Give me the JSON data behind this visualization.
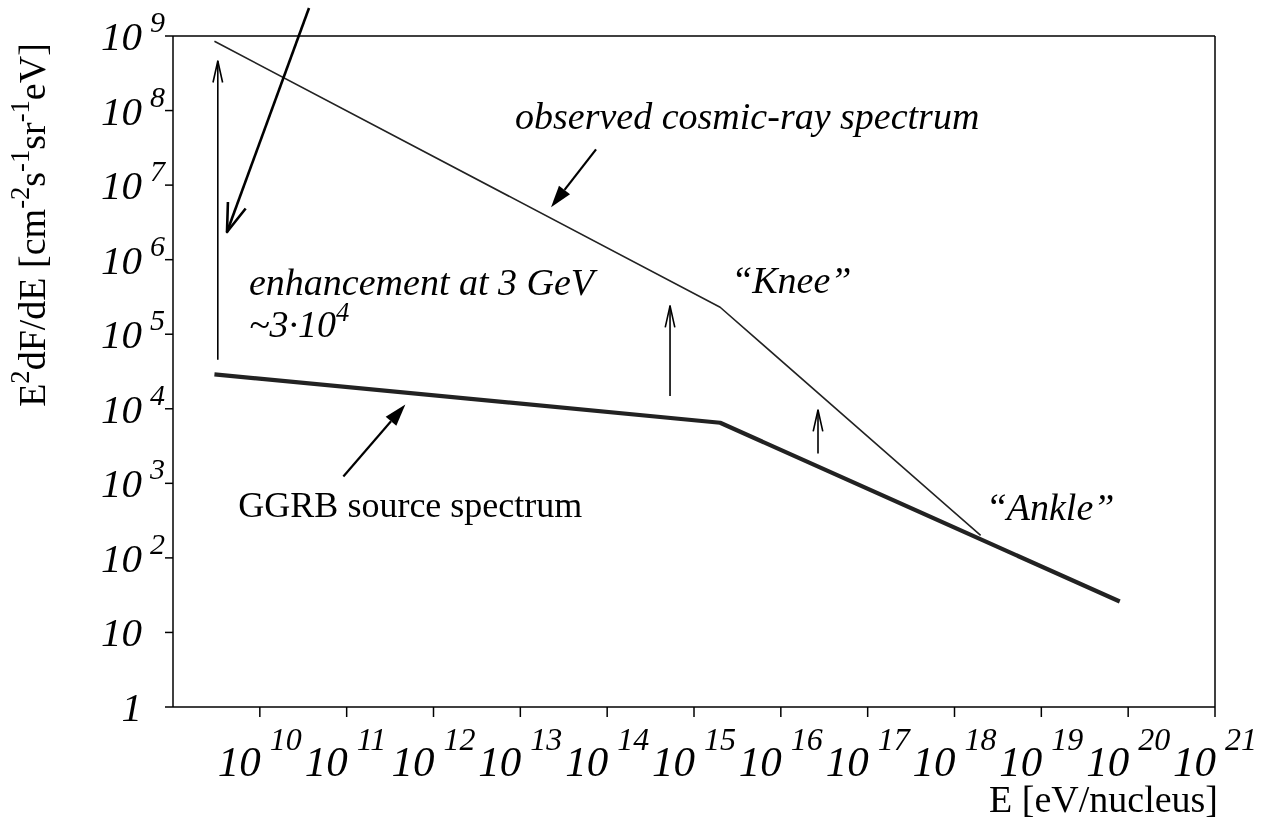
{
  "chart_data": {
    "type": "line",
    "xlabel": "E [eV/nucleus]",
    "ylabel": "E$^{2}$dF/dE [cm$^{-2}$s$^{-1}$sr$^{-1}$eV]",
    "annotations": [
      "enhancement at 3 GeV",
      "~3·10$^{4}$",
      {
        "text": "“Knee”",
        "x": 2000000000000000.0,
        "y": 230000.0
      },
      {
        "text": "“Ankle”",
        "x": 2e+18,
        "y": 200
      }
    ],
    "series": [
      {
        "name": "observed cosmic-ray spectrum",
        "color": "#222222",
        "x": [
          3000000000.0,
          2000000000000000.0,
          2e+18
        ],
        "values": [
          850000000.0,
          230000.0,
          200
        ]
      },
      {
        "name": "GGRB source spectrum",
        "color": "#222222",
        "x": [
          3000000000.0,
          2000000000000000.0,
          8e+19
        ],
        "values": [
          29000.0,
          6500.0,
          26
        ]
      }
    ],
    "log": "xy",
    "xlim": [
      1000000000.0,
      1e+21
    ],
    "ylim": [
      1,
      1000000000.0
    ],
    "xticks": [
      {
        "value": 10000000000.0,
        "label": "10$^{10}$"
      },
      {
        "value": 100000000000.0,
        "label": "10$^{11}$"
      },
      {
        "value": 1000000000000.0,
        "label": "10$^{12}$"
      },
      {
        "value": 10000000000000.0,
        "label": "10$^{13}$"
      },
      {
        "value": 100000000000000.0,
        "label": "10$^{14}$"
      },
      {
        "value": 1000000000000000.0,
        "label": "10$^{15}$"
      },
      {
        "value": 1e+16,
        "label": "10$^{16}$"
      },
      {
        "value": 1e+17,
        "label": "10$^{17}$"
      },
      {
        "value": 1e+18,
        "label": "10$^{18}$"
      },
      {
        "value": 1e+19,
        "label": "10$^{19}$"
      },
      {
        "value": 1e+20,
        "label": "10$^{20}$"
      },
      {
        "value": 1e+21,
        "label": "10$^{21}$"
      }
    ],
    "yticks": [
      1,
      10,
      {
        "value": 100,
        "label": "10$^{2}$"
      },
      {
        "value": 1000.0,
        "label": "10$^{3}$"
      },
      {
        "value": 10000.0,
        "label": "10$^{4}$"
      },
      {
        "value": 100000.0,
        "label": "10$^{5}$"
      },
      {
        "value": 1000000.0,
        "label": "10$^{6}$"
      },
      {
        "value": 10000000.0,
        "label": "10$^{7}$"
      },
      {
        "value": 100000000.0,
        "label": "10$^{8}$"
      },
      {
        "value": 1000000000.0,
        "label": "10$^{9}$"
      }
    ],
    "marker": "none"
  }
}
